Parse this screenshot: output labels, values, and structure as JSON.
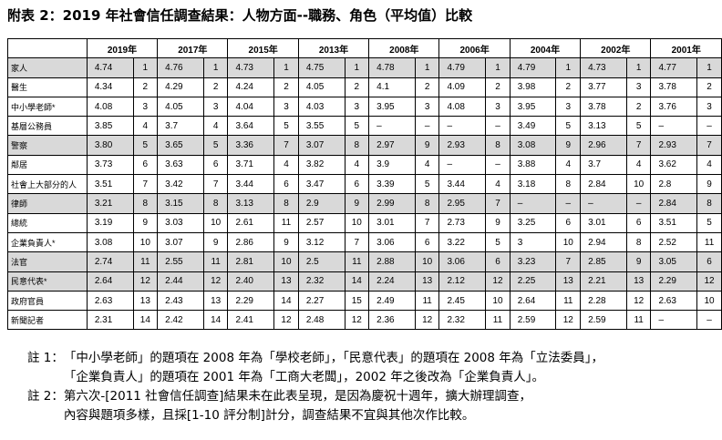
{
  "title": "附表 2：2019 年社會信任調查結果：人物方面--職務、角色（平均值）比較",
  "table": {
    "columns": [
      "2019年",
      "2017年",
      "2015年",
      "2013年",
      "2008年",
      "2006年",
      "2004年",
      "2002年",
      "2001年"
    ],
    "rows": [
      {
        "label": "家人",
        "cells": [
          "4.74",
          "1",
          "4.76",
          "1",
          "4.73",
          "1",
          "4.75",
          "1",
          "4.78",
          "1",
          "4.79",
          "1",
          "4.79",
          "1",
          "4.73",
          "1",
          "4.77",
          "1"
        ]
      },
      {
        "label": "醫生",
        "cells": [
          "4.34",
          "2",
          "4.29",
          "2",
          "4.24",
          "2",
          "4.05",
          "2",
          "4.1",
          "2",
          "4.09",
          "2",
          "3.98",
          "2",
          "3.77",
          "3",
          "3.78",
          "2"
        ]
      },
      {
        "label": "中小學老師*",
        "cells": [
          "4.08",
          "3",
          "4.05",
          "3",
          "4.04",
          "3",
          "4.03",
          "3",
          "3.95",
          "3",
          "4.08",
          "3",
          "3.95",
          "3",
          "3.78",
          "2",
          "3.76",
          "3"
        ]
      },
      {
        "label": "基層公務員",
        "cells": [
          "3.85",
          "4",
          "3.7",
          "4",
          "3.64",
          "5",
          "3.55",
          "5",
          "–",
          "–",
          "–",
          "–",
          "3.49",
          "5",
          "3.13",
          "5",
          "–",
          "–"
        ]
      },
      {
        "label": "警察",
        "cells": [
          "3.80",
          "5",
          "3.65",
          "5",
          "3.36",
          "7",
          "3.07",
          "8",
          "2.97",
          "9",
          "2.93",
          "8",
          "3.08",
          "9",
          "2.96",
          "7",
          "2.93",
          "7"
        ]
      },
      {
        "label": "鄰居",
        "cells": [
          "3.73",
          "6",
          "3.63",
          "6",
          "3.71",
          "4",
          "3.82",
          "4",
          "3.9",
          "4",
          "–",
          "–",
          "3.88",
          "4",
          "3.7",
          "4",
          "3.62",
          "4"
        ]
      },
      {
        "label": "社會上大部分的人",
        "cells": [
          "3.51",
          "7",
          "3.42",
          "7",
          "3.44",
          "6",
          "3.47",
          "6",
          "3.39",
          "5",
          "3.44",
          "4",
          "3.18",
          "8",
          "2.84",
          "10",
          "2.8",
          "9"
        ]
      },
      {
        "label": "律師",
        "cells": [
          "3.21",
          "8",
          "3.15",
          "8",
          "3.13",
          "8",
          "2.9",
          "9",
          "2.99",
          "8",
          "2.95",
          "7",
          "–",
          "–",
          "–",
          "–",
          "2.84",
          "8"
        ]
      },
      {
        "label": "總統",
        "cells": [
          "3.19",
          "9",
          "3.03",
          "10",
          "2.61",
          "11",
          "2.57",
          "10",
          "3.01",
          "7",
          "2.73",
          "9",
          "3.25",
          "6",
          "3.01",
          "6",
          "3.51",
          "5"
        ]
      },
      {
        "label": "企業負責人*",
        "cells": [
          "3.08",
          "10",
          "3.07",
          "9",
          "2.86",
          "9",
          "3.12",
          "7",
          "3.06",
          "6",
          "3.22",
          "5",
          "3",
          "10",
          "2.94",
          "8",
          "2.52",
          "11"
        ]
      },
      {
        "label": "法官",
        "cells": [
          "2.74",
          "11",
          "2.55",
          "11",
          "2.81",
          "10",
          "2.5",
          "11",
          "2.88",
          "10",
          "3.06",
          "6",
          "3.23",
          "7",
          "2.85",
          "9",
          "3.05",
          "6"
        ]
      },
      {
        "label": "民意代表*",
        "cells": [
          "2.64",
          "12",
          "2.44",
          "12",
          "2.40",
          "13",
          "2.32",
          "14",
          "2.24",
          "13",
          "2.12",
          "12",
          "2.25",
          "13",
          "2.21",
          "13",
          "2.29",
          "12"
        ]
      },
      {
        "label": "政府官員",
        "cells": [
          "2.63",
          "13",
          "2.43",
          "13",
          "2.29",
          "14",
          "2.27",
          "15",
          "2.49",
          "11",
          "2.45",
          "10",
          "2.64",
          "11",
          "2.28",
          "12",
          "2.63",
          "10"
        ]
      },
      {
        "label": "新聞記者",
        "cells": [
          "2.31",
          "14",
          "2.42",
          "14",
          "2.41",
          "12",
          "2.48",
          "12",
          "2.36",
          "12",
          "2.32",
          "11",
          "2.59",
          "12",
          "2.59",
          "11",
          "–",
          "–"
        ]
      }
    ]
  },
  "notes": [
    {
      "label": "註 1：",
      "lines": [
        "「中小學老師」的題項在 2008 年為「學校老師」，「民意代表」的題項在 2008 年為「立法委員」，",
        "「企業負責人」的題項在 2001 年為「工商大老闆」，2002 年之後改為「企業負責人」。"
      ]
    },
    {
      "label": "註 2：",
      "lines": [
        "第六次-[2011 社會信任調查]結果未在此表呈現，是因為慶祝十週年，擴大辦理調查，",
        "內容與題項多樣，且採[1-10 評分制]計分，調查結果不宜與其他次作比較。"
      ]
    }
  ]
}
